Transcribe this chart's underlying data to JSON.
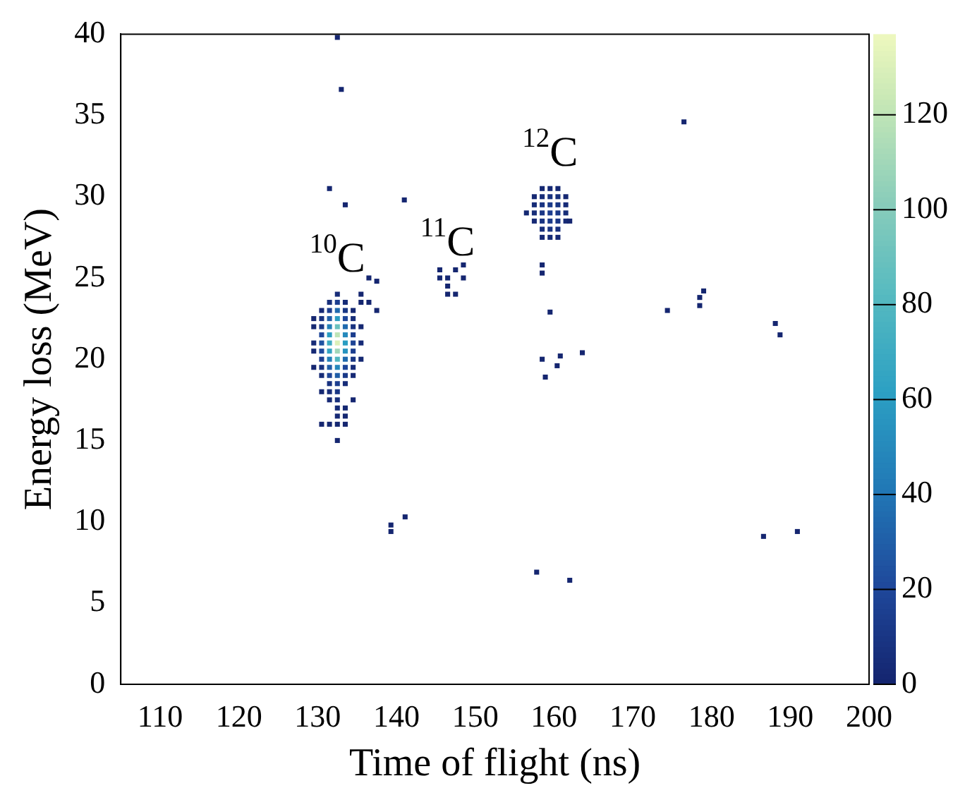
{
  "chart_data": {
    "type": "scatter",
    "xlabel": "Time of flight (ns)",
    "ylabel": "Energy loss (MeV)",
    "marker": "square",
    "grid": false,
    "xlim": [
      105,
      200
    ],
    "xticks": [
      110,
      120,
      130,
      140,
      150,
      160,
      170,
      180,
      190,
      200
    ],
    "ylim": [
      0,
      40
    ],
    "yticks": [
      0,
      5,
      10,
      15,
      20,
      25,
      30,
      35,
      40
    ],
    "clim": [
      0,
      137
    ],
    "cticks": [
      0,
      20,
      40,
      60,
      80,
      100,
      120
    ],
    "annotations": [
      {
        "text": "$^{10}$C",
        "x": 132.5,
        "y": 24
      },
      {
        "text": "$^{11}$C",
        "x": 146.5,
        "y": 25
      },
      {
        "text": "$^{12}$C",
        "x": 159.5,
        "y": 30.5
      }
    ],
    "x": [
      132.5,
      132.5,
      132.5,
      132.5,
      132.5,
      132.5,
      132.5,
      132.5,
      132.5,
      132.5,
      132.5,
      132.5,
      132.5,
      132.5,
      132.5,
      132.5,
      132.5,
      131.5,
      131.5,
      131.5,
      131.5,
      131.5,
      131.5,
      131.5,
      131.5,
      131.5,
      131.5,
      131.5,
      131.5,
      131.5,
      131.5,
      133.5,
      133.5,
      133.5,
      133.5,
      133.5,
      133.5,
      133.5,
      133.5,
      133.5,
      133.5,
      133.5,
      133.5,
      133.5,
      130.5,
      130.5,
      130.5,
      130.5,
      130.5,
      130.5,
      130.5,
      130.5,
      130.5,
      130.5,
      130.5,
      134.5,
      134.5,
      134.5,
      134.5,
      134.5,
      134.5,
      134.5,
      134.5,
      134.5,
      134.5,
      129.5,
      129.5,
      129.5,
      129.5,
      129.5,
      135.5,
      135.5,
      135.5,
      135.5,
      135.5,
      132.5,
      133.5,
      136.5,
      137.5,
      136.5,
      137.5,
      131.5,
      132.5,
      133,
      133.5,
      145.5,
      145.5,
      146.5,
      146.5,
      147.5,
      147.5,
      148.5,
      146.5,
      148.5,
      141,
      157.5,
      157.5,
      157.5,
      157.5,
      158.5,
      158.5,
      158.5,
      158.5,
      158.5,
      158.5,
      158.5,
      159.5,
      159.5,
      159.5,
      159.5,
      159.5,
      159.5,
      159.5,
      160.5,
      160.5,
      160.5,
      160.5,
      160.5,
      160.5,
      160.5,
      161.5,
      161.5,
      161.5,
      161.5,
      156.5,
      162,
      158.5,
      158.5,
      159.5,
      158.5,
      160.8,
      160.4,
      163.6,
      158.9,
      174.4,
      176.5,
      178.5,
      178.5,
      179,
      188.1,
      188.7,
      141.1,
      139.3,
      139.3,
      157.8,
      162,
      186.6,
      190.9
    ],
    "values": [
      20.5,
      21,
      21.5,
      22,
      20,
      22.5,
      19.5,
      23,
      19,
      23.5,
      18.5,
      18,
      17.5,
      17,
      16.5,
      16,
      24,
      21,
      20.5,
      21.5,
      22,
      20,
      19.5,
      22.5,
      23,
      19,
      18.5,
      18,
      23.5,
      17.5,
      16,
      21,
      20.5,
      21.5,
      22,
      20,
      22.5,
      19.5,
      23,
      19,
      18.5,
      17,
      23.5,
      16.5,
      21,
      20.5,
      21.5,
      22,
      20,
      19.5,
      22.5,
      19,
      23,
      18,
      16,
      21,
      20.5,
      21.5,
      22,
      20,
      19.5,
      22.5,
      19,
      23,
      17.5,
      21,
      20.5,
      22,
      19.5,
      22.5,
      21,
      22,
      20,
      23.5,
      24,
      15,
      16,
      23.5,
      23,
      25,
      24.8,
      30.5,
      39.8,
      36.6,
      29.5,
      25,
      25.5,
      25,
      24.5,
      25.5,
      24,
      25.8,
      24,
      25,
      29.8,
      28.5,
      29,
      29.5,
      30,
      27.5,
      28,
      28.5,
      29,
      29.5,
      30,
      30.5,
      27.5,
      28,
      28.5,
      29,
      29.5,
      30,
      30.5,
      27.5,
      28,
      28.5,
      29,
      29.5,
      30,
      30.5,
      28.5,
      29,
      29.5,
      30,
      29,
      28.5,
      25.8,
      25.3,
      22.9,
      20,
      20.2,
      19.6,
      20.4,
      18.9,
      23,
      34.6,
      23.3,
      23.8,
      24.2,
      22.2,
      21.5,
      10.3,
      9.8,
      9.4,
      6.9,
      6.4,
      9.1,
      9.4
    ],
    "cvalues": [
      110,
      130,
      120,
      90,
      80,
      60,
      50,
      35,
      30,
      15,
      15,
      10,
      6,
      4,
      3,
      2,
      5,
      70,
      65,
      60,
      45,
      45,
      30,
      30,
      15,
      18,
      8,
      5,
      6,
      3,
      2,
      60,
      55,
      50,
      35,
      35,
      20,
      20,
      10,
      12,
      5,
      2,
      4,
      2,
      25,
      22,
      20,
      12,
      15,
      8,
      8,
      4,
      3,
      2,
      1,
      18,
      15,
      14,
      8,
      10,
      5,
      5,
      3,
      2,
      1,
      4,
      3,
      2,
      1,
      1,
      4,
      2,
      2,
      1,
      1,
      1,
      1,
      1,
      1,
      1,
      1,
      1,
      1,
      1,
      1,
      2,
      1,
      2,
      1,
      1,
      1,
      1,
      1,
      1,
      1,
      3,
      5,
      4,
      2,
      3,
      6,
      9,
      11,
      9,
      5,
      2,
      4,
      9,
      13,
      15,
      13,
      8,
      3,
      3,
      7,
      11,
      12,
      10,
      6,
      2,
      3,
      5,
      4,
      2,
      2,
      1,
      1,
      1,
      1,
      1,
      1,
      1,
      1,
      1,
      1,
      1,
      1,
      1,
      1,
      1,
      1,
      1,
      1,
      1,
      1,
      1,
      1,
      1
    ]
  }
}
